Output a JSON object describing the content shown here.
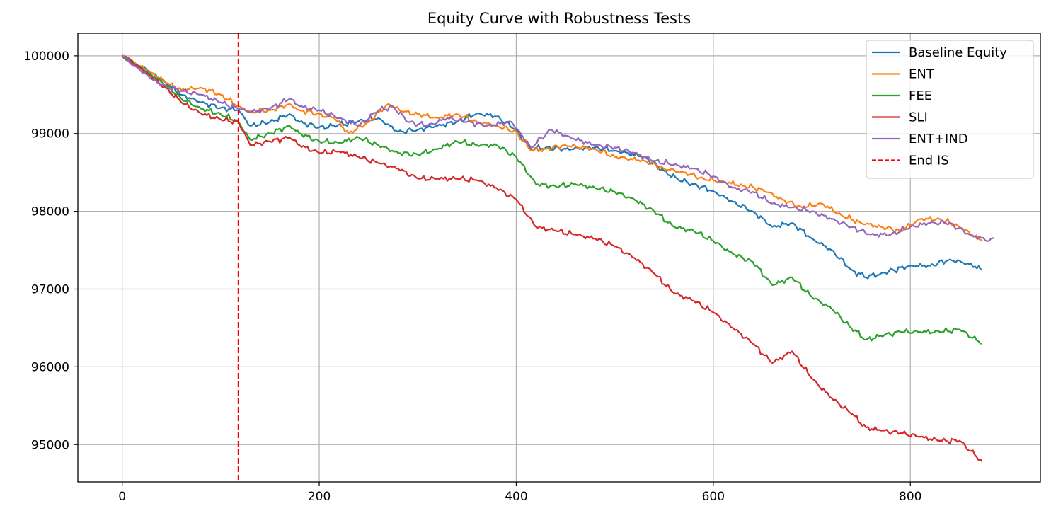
{
  "chart_data": {
    "type": "line",
    "title": "Equity Curve with Robustness Tests",
    "xlabel": "",
    "ylabel": "",
    "xlim": [
      -45,
      932
    ],
    "ylim": [
      94520,
      100290
    ],
    "xticks": [
      0,
      200,
      400,
      600,
      800
    ],
    "xtick_labels": [
      "0",
      "200",
      "400",
      "600",
      "800"
    ],
    "yticks": [
      95000,
      96000,
      97000,
      98000,
      99000,
      100000
    ],
    "ytick_labels": [
      "95000",
      "96000",
      "97000",
      "98000",
      "99000",
      "100000"
    ],
    "grid": true,
    "legend": {
      "placement": "top-right"
    },
    "vline": {
      "x": 118,
      "name": "End IS",
      "color": "#ff0000",
      "style": "dashed"
    },
    "series": [
      {
        "name": "Baseline Equity",
        "color": "#1f77b4",
        "points": [
          [
            0,
            100000
          ],
          [
            15,
            99880
          ],
          [
            30,
            99780
          ],
          [
            45,
            99650
          ],
          [
            60,
            99500
          ],
          [
            80,
            99400
          ],
          [
            100,
            99330
          ],
          [
            118,
            99300
          ],
          [
            130,
            99100
          ],
          [
            150,
            99150
          ],
          [
            170,
            99250
          ],
          [
            180,
            99150
          ],
          [
            200,
            99080
          ],
          [
            215,
            99100
          ],
          [
            240,
            99160
          ],
          [
            260,
            99200
          ],
          [
            280,
            99020
          ],
          [
            300,
            99050
          ],
          [
            320,
            99100
          ],
          [
            340,
            99150
          ],
          [
            360,
            99260
          ],
          [
            380,
            99220
          ],
          [
            400,
            99050
          ],
          [
            415,
            98800
          ],
          [
            430,
            98820
          ],
          [
            450,
            98800
          ],
          [
            480,
            98820
          ],
          [
            500,
            98780
          ],
          [
            530,
            98700
          ],
          [
            550,
            98520
          ],
          [
            565,
            98400
          ],
          [
            580,
            98350
          ],
          [
            600,
            98260
          ],
          [
            620,
            98120
          ],
          [
            640,
            98000
          ],
          [
            660,
            97800
          ],
          [
            680,
            97850
          ],
          [
            700,
            97650
          ],
          [
            720,
            97500
          ],
          [
            740,
            97250
          ],
          [
            755,
            97150
          ],
          [
            770,
            97200
          ],
          [
            800,
            97300
          ],
          [
            820,
            97300
          ],
          [
            840,
            97380
          ],
          [
            860,
            97320
          ],
          [
            873,
            97250
          ]
        ]
      },
      {
        "name": "ENT",
        "color": "#ff7f0e",
        "points": [
          [
            0,
            100000
          ],
          [
            15,
            99880
          ],
          [
            30,
            99780
          ],
          [
            45,
            99650
          ],
          [
            60,
            99560
          ],
          [
            80,
            99590
          ],
          [
            100,
            99500
          ],
          [
            118,
            99350
          ],
          [
            130,
            99280
          ],
          [
            150,
            99300
          ],
          [
            170,
            99380
          ],
          [
            180,
            99300
          ],
          [
            200,
            99250
          ],
          [
            215,
            99200
          ],
          [
            230,
            99000
          ],
          [
            250,
            99150
          ],
          [
            270,
            99380
          ],
          [
            285,
            99280
          ],
          [
            300,
            99250
          ],
          [
            320,
            99200
          ],
          [
            340,
            99250
          ],
          [
            360,
            99150
          ],
          [
            380,
            99100
          ],
          [
            400,
            99020
          ],
          [
            415,
            98780
          ],
          [
            430,
            98800
          ],
          [
            450,
            98850
          ],
          [
            480,
            98800
          ],
          [
            500,
            98700
          ],
          [
            530,
            98650
          ],
          [
            550,
            98550
          ],
          [
            570,
            98500
          ],
          [
            590,
            98420
          ],
          [
            610,
            98380
          ],
          [
            630,
            98330
          ],
          [
            650,
            98280
          ],
          [
            670,
            98150
          ],
          [
            690,
            98050
          ],
          [
            710,
            98100
          ],
          [
            730,
            97950
          ],
          [
            750,
            97850
          ],
          [
            770,
            97800
          ],
          [
            790,
            97750
          ],
          [
            810,
            97900
          ],
          [
            830,
            97900
          ],
          [
            850,
            97800
          ],
          [
            873,
            97620
          ]
        ]
      },
      {
        "name": "FEE",
        "color": "#2ca02c",
        "points": [
          [
            0,
            100000
          ],
          [
            15,
            99880
          ],
          [
            30,
            99750
          ],
          [
            45,
            99620
          ],
          [
            60,
            99450
          ],
          [
            80,
            99320
          ],
          [
            100,
            99250
          ],
          [
            118,
            99150
          ],
          [
            130,
            98920
          ],
          [
            150,
            99000
          ],
          [
            170,
            99100
          ],
          [
            180,
            99000
          ],
          [
            200,
            98900
          ],
          [
            220,
            98880
          ],
          [
            240,
            98950
          ],
          [
            260,
            98850
          ],
          [
            280,
            98750
          ],
          [
            300,
            98730
          ],
          [
            320,
            98800
          ],
          [
            340,
            98900
          ],
          [
            360,
            98850
          ],
          [
            380,
            98850
          ],
          [
            400,
            98700
          ],
          [
            420,
            98350
          ],
          [
            440,
            98320
          ],
          [
            460,
            98350
          ],
          [
            480,
            98300
          ],
          [
            500,
            98250
          ],
          [
            520,
            98150
          ],
          [
            540,
            98000
          ],
          [
            560,
            97800
          ],
          [
            580,
            97750
          ],
          [
            600,
            97620
          ],
          [
            620,
            97450
          ],
          [
            640,
            97350
          ],
          [
            660,
            97050
          ],
          [
            680,
            97150
          ],
          [
            700,
            96900
          ],
          [
            720,
            96750
          ],
          [
            740,
            96500
          ],
          [
            755,
            96350
          ],
          [
            770,
            96400
          ],
          [
            790,
            96450
          ],
          [
            810,
            96450
          ],
          [
            830,
            96450
          ],
          [
            850,
            96480
          ],
          [
            873,
            96300
          ]
        ]
      },
      {
        "name": "SLI",
        "color": "#d62728",
        "points": [
          [
            0,
            100000
          ],
          [
            15,
            99880
          ],
          [
            30,
            99720
          ],
          [
            45,
            99580
          ],
          [
            60,
            99400
          ],
          [
            80,
            99260
          ],
          [
            100,
            99180
          ],
          [
            118,
            99150
          ],
          [
            130,
            98850
          ],
          [
            150,
            98900
          ],
          [
            170,
            98950
          ],
          [
            180,
            98850
          ],
          [
            200,
            98750
          ],
          [
            220,
            98770
          ],
          [
            240,
            98700
          ],
          [
            260,
            98620
          ],
          [
            280,
            98550
          ],
          [
            300,
            98420
          ],
          [
            320,
            98420
          ],
          [
            340,
            98420
          ],
          [
            360,
            98400
          ],
          [
            380,
            98300
          ],
          [
            400,
            98150
          ],
          [
            420,
            97800
          ],
          [
            440,
            97750
          ],
          [
            460,
            97700
          ],
          [
            480,
            97650
          ],
          [
            500,
            97550
          ],
          [
            520,
            97400
          ],
          [
            540,
            97200
          ],
          [
            560,
            96950
          ],
          [
            580,
            96850
          ],
          [
            600,
            96700
          ],
          [
            620,
            96500
          ],
          [
            640,
            96300
          ],
          [
            660,
            96050
          ],
          [
            680,
            96200
          ],
          [
            700,
            95850
          ],
          [
            720,
            95600
          ],
          [
            740,
            95400
          ],
          [
            755,
            95220
          ],
          [
            770,
            95180
          ],
          [
            790,
            95150
          ],
          [
            810,
            95100
          ],
          [
            830,
            95050
          ],
          [
            850,
            95050
          ],
          [
            873,
            94780
          ]
        ]
      },
      {
        "name": "ENT+IND",
        "color": "#9467bd",
        "points": [
          [
            0,
            100000
          ],
          [
            15,
            99850
          ],
          [
            30,
            99700
          ],
          [
            45,
            99600
          ],
          [
            60,
            99550
          ],
          [
            80,
            99500
          ],
          [
            100,
            99400
          ],
          [
            118,
            99320
          ],
          [
            130,
            99280
          ],
          [
            150,
            99320
          ],
          [
            170,
            99450
          ],
          [
            180,
            99350
          ],
          [
            200,
            99300
          ],
          [
            220,
            99200
          ],
          [
            240,
            99100
          ],
          [
            260,
            99300
          ],
          [
            275,
            99350
          ],
          [
            290,
            99150
          ],
          [
            310,
            99100
          ],
          [
            330,
            99200
          ],
          [
            350,
            99150
          ],
          [
            370,
            99100
          ],
          [
            395,
            99150
          ],
          [
            415,
            98820
          ],
          [
            435,
            99050
          ],
          [
            455,
            98950
          ],
          [
            480,
            98850
          ],
          [
            500,
            98820
          ],
          [
            520,
            98750
          ],
          [
            540,
            98650
          ],
          [
            560,
            98600
          ],
          [
            580,
            98550
          ],
          [
            600,
            98450
          ],
          [
            620,
            98300
          ],
          [
            640,
            98250
          ],
          [
            660,
            98100
          ],
          [
            680,
            98050
          ],
          [
            700,
            98000
          ],
          [
            720,
            97900
          ],
          [
            740,
            97800
          ],
          [
            760,
            97700
          ],
          [
            780,
            97700
          ],
          [
            800,
            97800
          ],
          [
            820,
            97850
          ],
          [
            840,
            97850
          ],
          [
            860,
            97700
          ],
          [
            880,
            97620
          ],
          [
            885,
            97660
          ]
        ]
      }
    ]
  }
}
